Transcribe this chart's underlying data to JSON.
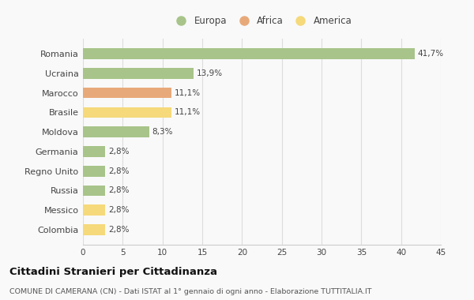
{
  "categories": [
    "Romania",
    "Ucraina",
    "Marocco",
    "Brasile",
    "Moldova",
    "Germania",
    "Regno Unito",
    "Russia",
    "Messico",
    "Colombia"
  ],
  "values": [
    41.7,
    13.9,
    11.1,
    11.1,
    8.3,
    2.8,
    2.8,
    2.8,
    2.8,
    2.8
  ],
  "labels": [
    "41,7%",
    "13,9%",
    "11,1%",
    "11,1%",
    "8,3%",
    "2,8%",
    "2,8%",
    "2,8%",
    "2,8%",
    "2,8%"
  ],
  "colors": [
    "#a8c48a",
    "#a8c48a",
    "#e8a97a",
    "#f5d97a",
    "#a8c48a",
    "#a8c48a",
    "#a8c48a",
    "#a8c48a",
    "#f5d97a",
    "#f5d97a"
  ],
  "legend": [
    {
      "label": "Europa",
      "color": "#a8c48a"
    },
    {
      "label": "Africa",
      "color": "#e8a97a"
    },
    {
      "label": "America",
      "color": "#f5d97a"
    }
  ],
  "xlim": [
    0,
    45
  ],
  "xticks": [
    0,
    5,
    10,
    15,
    20,
    25,
    30,
    35,
    40,
    45
  ],
  "title": "Cittadini Stranieri per Cittadinanza",
  "subtitle": "COMUNE DI CAMERANA (CN) - Dati ISTAT al 1° gennaio di ogni anno - Elaborazione TUTTITALIA.IT",
  "background_color": "#f9f9f9",
  "bar_height": 0.55
}
